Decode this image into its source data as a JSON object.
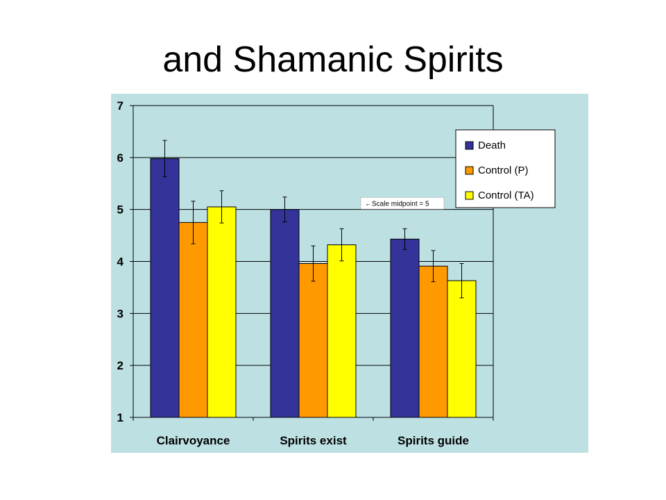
{
  "page": {
    "title": "and Shamanic Spirits"
  },
  "colors": {
    "plot_background": "#bde0e3",
    "axis": "#000000",
    "gridline": "#000000"
  },
  "chart_data": {
    "type": "bar",
    "categories": [
      "Clairvoyance",
      "Spirits exist",
      "Spirits guide"
    ],
    "series": [
      {
        "name": "Death",
        "color": "#333399",
        "values": [
          5.98,
          5.0,
          4.43
        ],
        "error": [
          0.35,
          0.24,
          0.2
        ]
      },
      {
        "name": "Control (P)",
        "color": "#ff9900",
        "values": [
          4.75,
          3.96,
          3.91
        ],
        "error": [
          0.41,
          0.34,
          0.3
        ]
      },
      {
        "name": "Control (TA)",
        "color": "#ffff00",
        "values": [
          5.05,
          4.32,
          3.63
        ],
        "error": [
          0.31,
          0.31,
          0.33
        ]
      }
    ],
    "ylim": [
      1,
      7
    ],
    "yticks": [
      "1",
      "2",
      "3",
      "4",
      "5",
      "6",
      "7"
    ],
    "grid": true,
    "legend": "top-right",
    "annotation": {
      "text": "←Scale midpoint = 5",
      "y": 5.12
    }
  }
}
